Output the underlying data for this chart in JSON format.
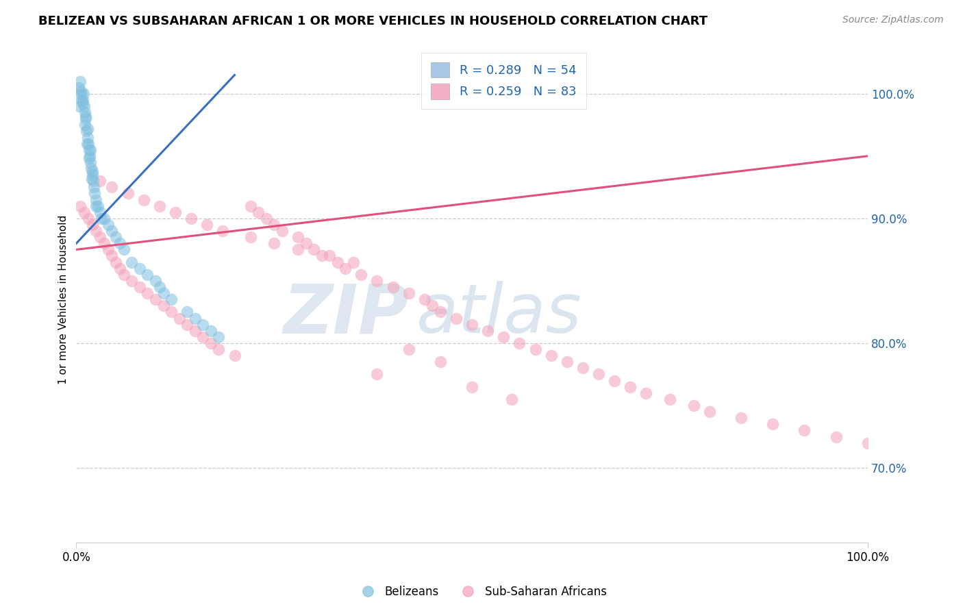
{
  "title": "BELIZEAN VS SUBSAHARAN AFRICAN 1 OR MORE VEHICLES IN HOUSEHOLD CORRELATION CHART",
  "source": "Source: ZipAtlas.com",
  "ylabel": "1 or more Vehicles in Household",
  "xlim": [
    0,
    100
  ],
  "ylim": [
    64,
    103
  ],
  "yticks": [
    70,
    80,
    90,
    100
  ],
  "ytick_labels": [
    "70.0%",
    "80.0%",
    "90.0%",
    "100.0%"
  ],
  "xtick_labels": [
    "0.0%",
    "100.0%"
  ],
  "legend_blue_r": "R = 0.289",
  "legend_blue_n": "N = 54",
  "legend_pink_r": "R = 0.259",
  "legend_pink_n": "N = 83",
  "blue_color": "#7fbfdf",
  "pink_color": "#f4a0b8",
  "blue_line_color": "#3a6fbf",
  "pink_line_color": "#e0507a",
  "legend_text_color": "#2166ac",
  "watermark_zip": "ZIP",
  "watermark_atlas": "atlas",
  "blue_x": [
    0.3,
    0.5,
    0.6,
    0.8,
    0.9,
    1.0,
    1.1,
    1.2,
    1.3,
    1.4,
    1.5,
    1.6,
    1.7,
    1.8,
    1.9,
    2.0,
    2.1,
    2.2,
    2.3,
    2.5,
    2.7,
    3.0,
    3.5,
    4.0,
    4.5,
    5.0,
    5.5,
    6.0,
    7.0,
    8.0,
    9.0,
    10.0,
    10.5,
    11.0,
    12.0,
    14.0,
    15.0,
    16.0,
    17.0,
    18.0,
    0.4,
    0.7,
    1.05,
    1.35,
    1.65,
    1.95,
    0.55,
    0.85,
    1.15,
    1.45,
    1.75,
    2.05,
    2.5,
    3.2
  ],
  "blue_y": [
    100.5,
    101.0,
    100.0,
    99.5,
    100.0,
    99.0,
    98.5,
    98.0,
    97.0,
    96.5,
    96.0,
    95.5,
    95.0,
    94.5,
    94.0,
    93.5,
    93.0,
    92.5,
    92.0,
    91.5,
    91.0,
    90.5,
    90.0,
    89.5,
    89.0,
    88.5,
    88.0,
    87.5,
    86.5,
    86.0,
    85.5,
    85.0,
    84.5,
    84.0,
    83.5,
    82.5,
    82.0,
    81.5,
    81.0,
    80.5,
    99.0,
    99.5,
    97.5,
    96.0,
    94.8,
    93.2,
    100.2,
    99.2,
    98.2,
    97.2,
    95.5,
    93.8,
    91.0,
    90.0
  ],
  "pink_x": [
    0.5,
    1.0,
    1.5,
    2.0,
    2.5,
    3.0,
    3.5,
    4.0,
    4.5,
    5.0,
    5.5,
    6.0,
    7.0,
    8.0,
    9.0,
    10.0,
    11.0,
    12.0,
    13.0,
    14.0,
    15.0,
    16.0,
    17.0,
    18.0,
    20.0,
    22.0,
    23.0,
    24.0,
    25.0,
    26.0,
    28.0,
    29.0,
    30.0,
    32.0,
    33.0,
    34.0,
    36.0,
    38.0,
    40.0,
    42.0,
    44.0,
    45.0,
    46.0,
    48.0,
    50.0,
    52.0,
    54.0,
    56.0,
    58.0,
    60.0,
    62.0,
    64.0,
    66.0,
    68.0,
    70.0,
    72.0,
    75.0,
    78.0,
    80.0,
    84.0,
    88.0,
    92.0,
    96.0,
    100.0,
    3.0,
    4.5,
    6.5,
    8.5,
    10.5,
    12.5,
    14.5,
    16.5,
    18.5,
    22.0,
    25.0,
    28.0,
    31.0,
    35.0,
    38.0,
    42.0,
    46.0,
    50.0,
    55.0
  ],
  "pink_y": [
    91.0,
    90.5,
    90.0,
    89.5,
    89.0,
    88.5,
    88.0,
    87.5,
    87.0,
    86.5,
    86.0,
    85.5,
    85.0,
    84.5,
    84.0,
    83.5,
    83.0,
    82.5,
    82.0,
    81.5,
    81.0,
    80.5,
    80.0,
    79.5,
    79.0,
    91.0,
    90.5,
    90.0,
    89.5,
    89.0,
    88.5,
    88.0,
    87.5,
    87.0,
    86.5,
    86.0,
    85.5,
    85.0,
    84.5,
    84.0,
    83.5,
    83.0,
    82.5,
    82.0,
    81.5,
    81.0,
    80.5,
    80.0,
    79.5,
    79.0,
    78.5,
    78.0,
    77.5,
    77.0,
    76.5,
    76.0,
    75.5,
    75.0,
    74.5,
    74.0,
    73.5,
    73.0,
    72.5,
    72.0,
    93.0,
    92.5,
    92.0,
    91.5,
    91.0,
    90.5,
    90.0,
    89.5,
    89.0,
    88.5,
    88.0,
    87.5,
    87.0,
    86.5,
    77.5,
    79.5,
    78.5,
    76.5,
    75.5
  ],
  "blue_trend_x0": 0,
  "blue_trend_y0": 88.0,
  "blue_trend_x1": 20,
  "blue_trend_y1": 101.5,
  "pink_trend_x0": 0,
  "pink_trend_y0": 87.5,
  "pink_trend_x1": 100,
  "pink_trend_y1": 95.0
}
